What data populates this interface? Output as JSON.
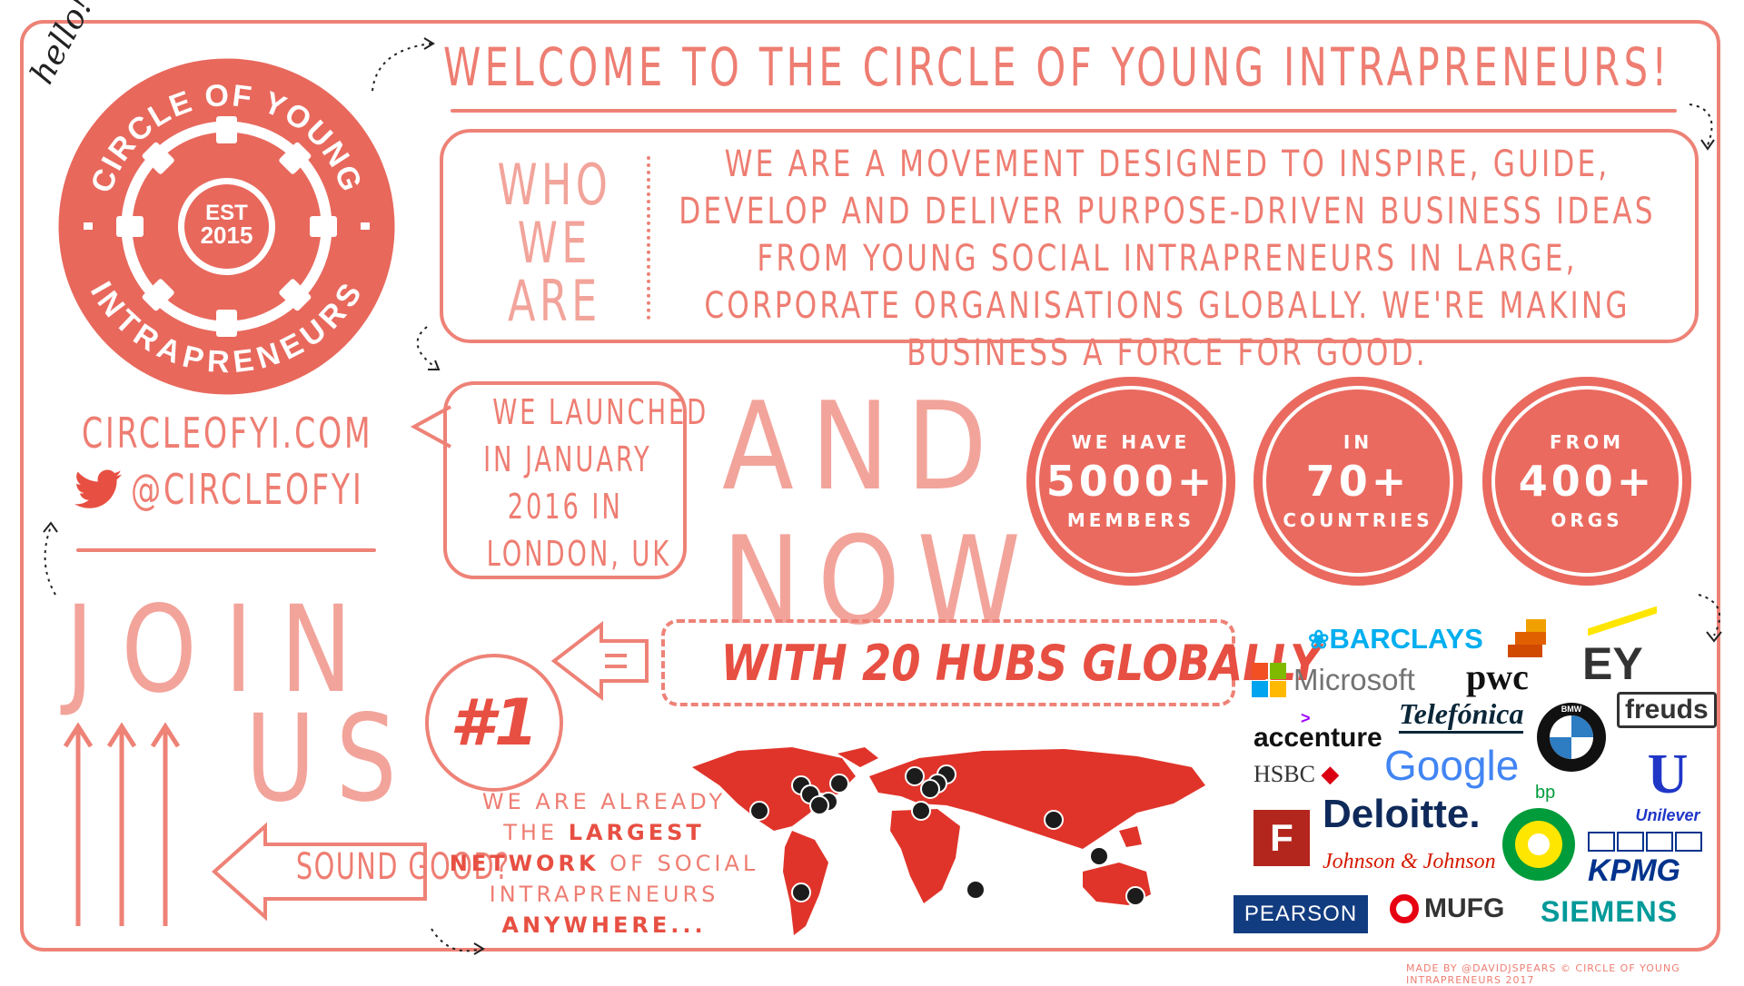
{
  "header": {
    "welcome": "WELCOME TO THE CIRCLE OF YOUNG INTRAPRENEURS!",
    "hello": "hello!"
  },
  "logo": {
    "top_text": "CIRCLE OF YOUNG",
    "bottom_text": "INTRAPRENEURS",
    "est": "EST",
    "year": "2015"
  },
  "about": {
    "who_lines": [
      "WHO",
      "WE",
      "ARE"
    ],
    "mission": "WE ARE A MOVEMENT DESIGNED TO INSPIRE, GUIDE, DEVELOP AND DELIVER PURPOSE-DRIVEN BUSINESS IDEAS FROM YOUNG SOCIAL INTRAPRENEURS IN LARGE, CORPORATE ORGANISATIONS GLOBALLY. WE'RE MAKING BUSINESS A FORCE FOR GOOD."
  },
  "contact": {
    "website": "CIRCLEOFYI.COM",
    "twitter": "@CIRCLEOFYI"
  },
  "launch": {
    "lines": [
      "WE LAUNCHED",
      "IN JANUARY",
      "2016 IN",
      "LONDON, UK"
    ]
  },
  "and_now": [
    "AND",
    "NOW"
  ],
  "stats": [
    {
      "top": "WE HAVE",
      "value": "5000+",
      "bottom": "MEMBERS"
    },
    {
      "top": "IN",
      "value": "70+",
      "bottom": "COUNTRIES"
    },
    {
      "top": "FROM",
      "value": "400+",
      "bottom": "ORGS"
    }
  ],
  "hubs": {
    "text": "WITH 20 HUBS GLOBALLY"
  },
  "rank": {
    "badge": "#1",
    "line1": "WE ARE ALREADY",
    "line2a": "THE ",
    "line2b": "LARGEST",
    "line3a": "NETWORK",
    "line3b": " OF SOCIAL",
    "line4": "INTRAPRENEURS",
    "line5": "ANYWHERE..."
  },
  "join": {
    "word1": "JOIN",
    "word2": "US",
    "sound_good": "SOUND GOOD?"
  },
  "partners": [
    {
      "name": "BARCLAYS",
      "color": "#00aeef"
    },
    {
      "name": "Microsoft",
      "color": "#737373"
    },
    {
      "name": "pwc",
      "color": "#111111"
    },
    {
      "name": "EY",
      "color": "#333333"
    },
    {
      "name": "accenture",
      "color": "#111111"
    },
    {
      "name": "Telefónica",
      "color": "#0b2739"
    },
    {
      "name": "freuds",
      "color": "#333333"
    },
    {
      "name": "HSBC",
      "color": "#333333"
    },
    {
      "name": "Google",
      "color": "#4285f4"
    },
    {
      "name": "BMW",
      "color": "#111111"
    },
    {
      "name": "Unilever",
      "color": "#1f36c7"
    },
    {
      "name": "bp",
      "color": "#009b3a"
    },
    {
      "name": "Deloitte.",
      "color": "#0f2a5a"
    },
    {
      "name": "Johnson & Johnson",
      "color": "#d51900"
    },
    {
      "name": "KPMG",
      "color": "#00338d"
    },
    {
      "name": "PEARSON",
      "color": "#ffffff"
    },
    {
      "name": "MUFG",
      "color": "#333333"
    },
    {
      "name": "SIEMENS",
      "color": "#009999"
    }
  ],
  "footer": "MADE BY @DAVIDJSPEARS © CIRCLE OF YOUNG INTRAPRENEURS 2017"
}
